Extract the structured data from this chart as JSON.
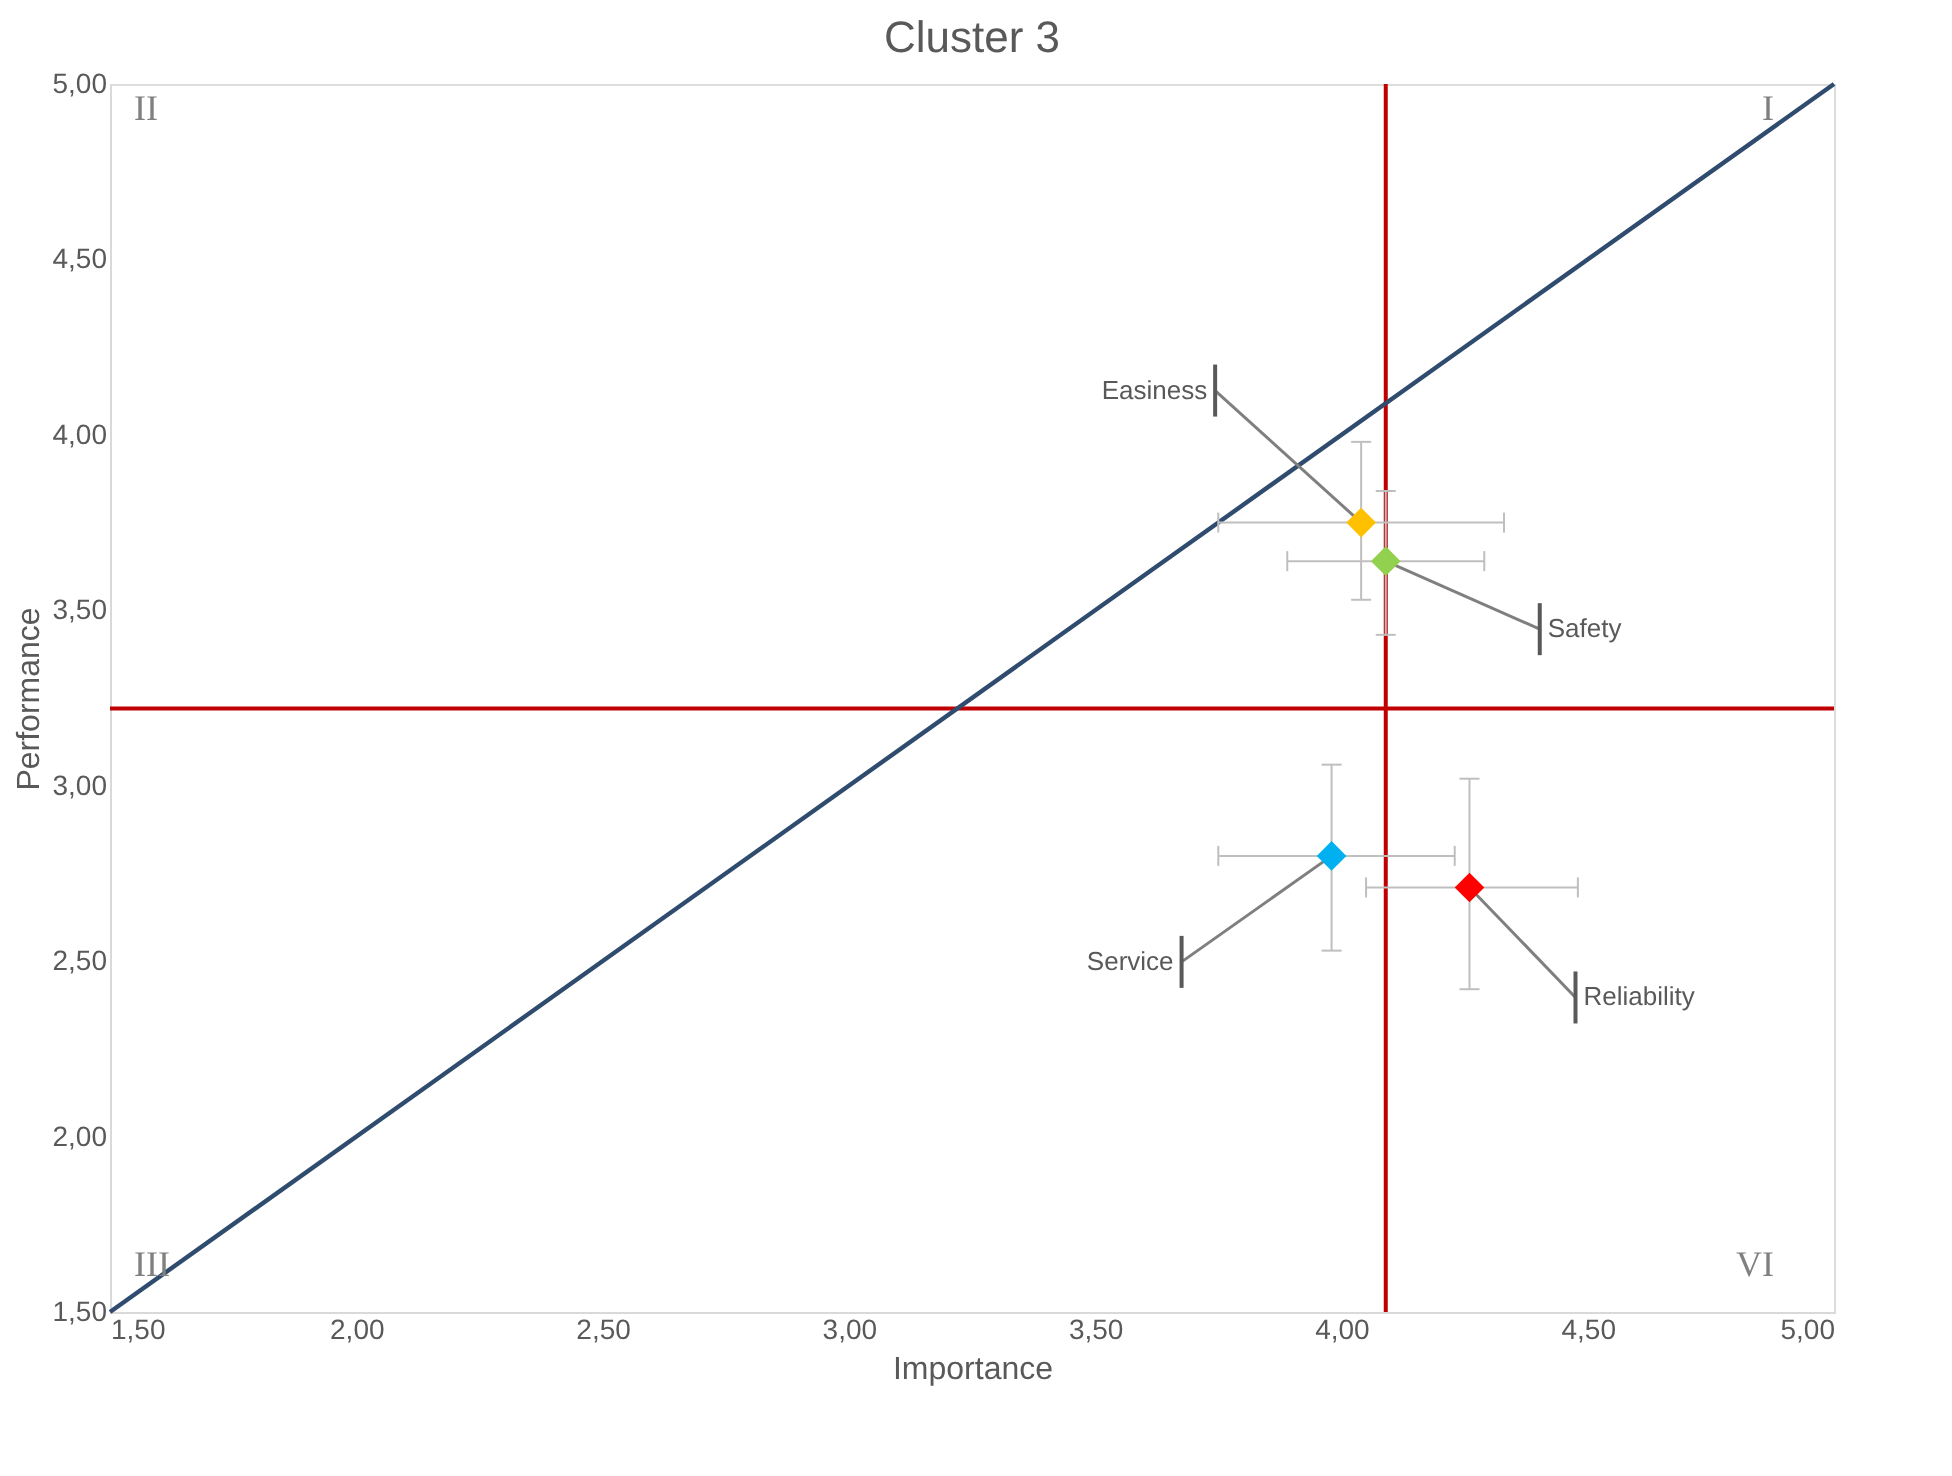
{
  "chart_data": {
    "type": "scatter",
    "title": "Cluster 3",
    "xlabel": "Importance",
    "ylabel": "Performance",
    "xlim": [
      1.5,
      5.0
    ],
    "ylim": [
      1.5,
      5.0
    ],
    "xticks": [
      {
        "value": 1.5,
        "label": "1,50"
      },
      {
        "value": 2.0,
        "label": "2,00"
      },
      {
        "value": 2.5,
        "label": "2,50"
      },
      {
        "value": 3.0,
        "label": "3,00"
      },
      {
        "value": 3.5,
        "label": "3,50"
      },
      {
        "value": 4.0,
        "label": "4,00"
      },
      {
        "value": 4.5,
        "label": "4,50"
      },
      {
        "value": 5.0,
        "label": "5,00"
      }
    ],
    "yticks": [
      {
        "value": 1.5,
        "label": "1,50"
      },
      {
        "value": 2.0,
        "label": "2,00"
      },
      {
        "value": 2.5,
        "label": "2,50"
      },
      {
        "value": 3.0,
        "label": "3,00"
      },
      {
        "value": 3.5,
        "label": "3,50"
      },
      {
        "value": 4.0,
        "label": "4,00"
      },
      {
        "value": 4.5,
        "label": "4,50"
      },
      {
        "value": 5.0,
        "label": "5,00"
      }
    ],
    "grid": false,
    "series": [
      {
        "name": "Easiness",
        "color": "#ffc000",
        "marker": "diamond",
        "x": [
          4.04
        ],
        "values": [
          3.75
        ],
        "errors": [
          [
            3.53,
            3.98
          ]
        ],
        "xerrors": [
          [
            3.75,
            4.33
          ]
        ]
      },
      {
        "name": "Safety",
        "color": "#92d050",
        "marker": "diamond",
        "x": [
          4.09
        ],
        "values": [
          3.64
        ],
        "errors": [
          [
            3.43,
            3.84
          ]
        ],
        "xerrors": [
          [
            3.89,
            4.29
          ]
        ]
      },
      {
        "name": "Service",
        "color": "#00b0f0",
        "marker": "diamond",
        "x": [
          3.98
        ],
        "values": [
          2.8
        ],
        "errors": [
          [
            2.53,
            3.06
          ]
        ],
        "xerrors": [
          [
            3.75,
            4.23
          ]
        ]
      },
      {
        "name": "Reliability",
        "color": "#ff0000",
        "marker": "diamond",
        "x": [
          4.26
        ],
        "values": [
          2.71
        ],
        "errors": [
          [
            2.42,
            3.02
          ]
        ],
        "xerrors": [
          [
            4.05,
            4.48
          ]
        ]
      },
      {
        "type": "line",
        "color": "#2f4b6e",
        "x": [
          1.5,
          5.0
        ],
        "values": [
          1.5,
          5.0
        ],
        "line_style": "solid",
        "marker": "none"
      }
    ],
    "ref_lines": [
      {
        "axis": "x",
        "value": 4.09,
        "color": "#c00000"
      },
      {
        "axis": "y",
        "value": 3.22,
        "color": "#c00000"
      }
    ],
    "annotations": [
      "II",
      "I",
      "III",
      "VI"
    ]
  }
}
